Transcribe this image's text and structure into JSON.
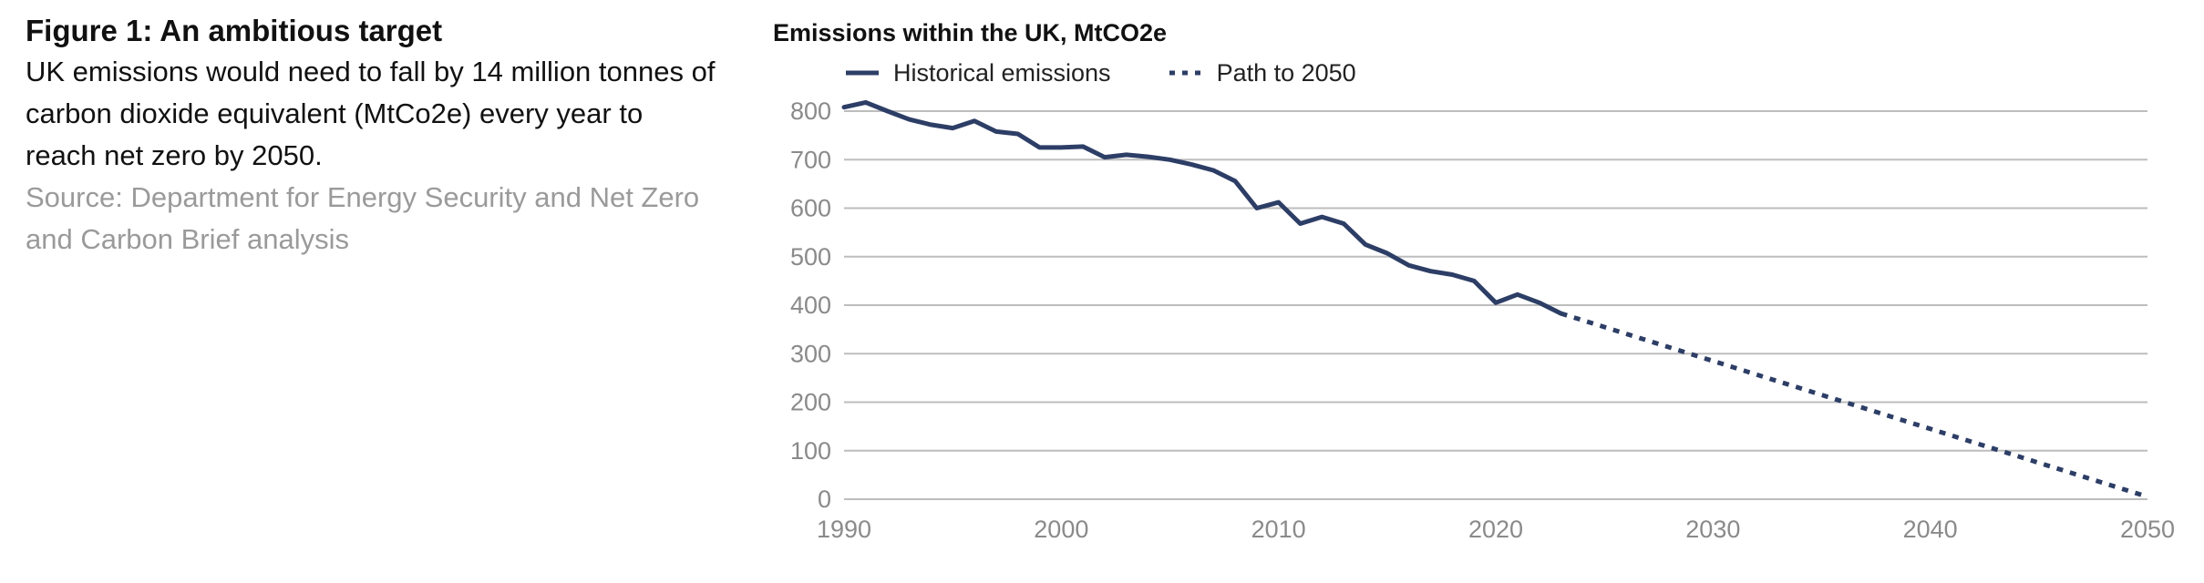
{
  "figure": {
    "title": "Figure 1: An ambitious target",
    "description": "UK emissions would need to fall by 14 million tonnes of carbon dioxide equivalent (MtCo2e) every year to reach net zero by 2050.",
    "source": "Source: Department for Energy Security and Net Zero and Carbon Brief analysis"
  },
  "colors": {
    "series": "#2d3e66",
    "grid": "#bdbdbd",
    "tick": "#8a8a8a"
  },
  "chart_data": {
    "type": "line",
    "title": "Emissions within the UK, MtCO2e",
    "xlabel": "",
    "ylabel": "",
    "xlim": [
      1990,
      2050
    ],
    "ylim": [
      0,
      800
    ],
    "grid": true,
    "legend_position": "top-left",
    "x_ticks": [
      "1990",
      "2000",
      "2010",
      "2020",
      "2030",
      "2040",
      "2050"
    ],
    "y_ticks": [
      "0",
      "100",
      "200",
      "300",
      "400",
      "500",
      "600",
      "700",
      "800"
    ],
    "series": [
      {
        "name": "Historical emissions",
        "style": "solid",
        "points": [
          [
            1990,
            808
          ],
          [
            1991,
            818
          ],
          [
            1992,
            800
          ],
          [
            1993,
            783
          ],
          [
            1994,
            772
          ],
          [
            1995,
            765
          ],
          [
            1996,
            780
          ],
          [
            1997,
            758
          ],
          [
            1998,
            753
          ],
          [
            1999,
            725
          ],
          [
            2000,
            725
          ],
          [
            2001,
            727
          ],
          [
            2002,
            705
          ],
          [
            2003,
            710
          ],
          [
            2004,
            706
          ],
          [
            2005,
            700
          ],
          [
            2006,
            690
          ],
          [
            2007,
            678
          ],
          [
            2008,
            656
          ],
          [
            2009,
            600
          ],
          [
            2010,
            612
          ],
          [
            2011,
            568
          ],
          [
            2012,
            582
          ],
          [
            2013,
            568
          ],
          [
            2014,
            525
          ],
          [
            2015,
            507
          ],
          [
            2016,
            482
          ],
          [
            2017,
            470
          ],
          [
            2018,
            463
          ],
          [
            2019,
            450
          ],
          [
            2020,
            405
          ],
          [
            2021,
            422
          ],
          [
            2022,
            405
          ],
          [
            2023,
            383
          ]
        ]
      },
      {
        "name": "Path to 2050",
        "style": "dotted",
        "points": [
          [
            2023,
            383
          ],
          [
            2050,
            5
          ]
        ]
      }
    ]
  }
}
